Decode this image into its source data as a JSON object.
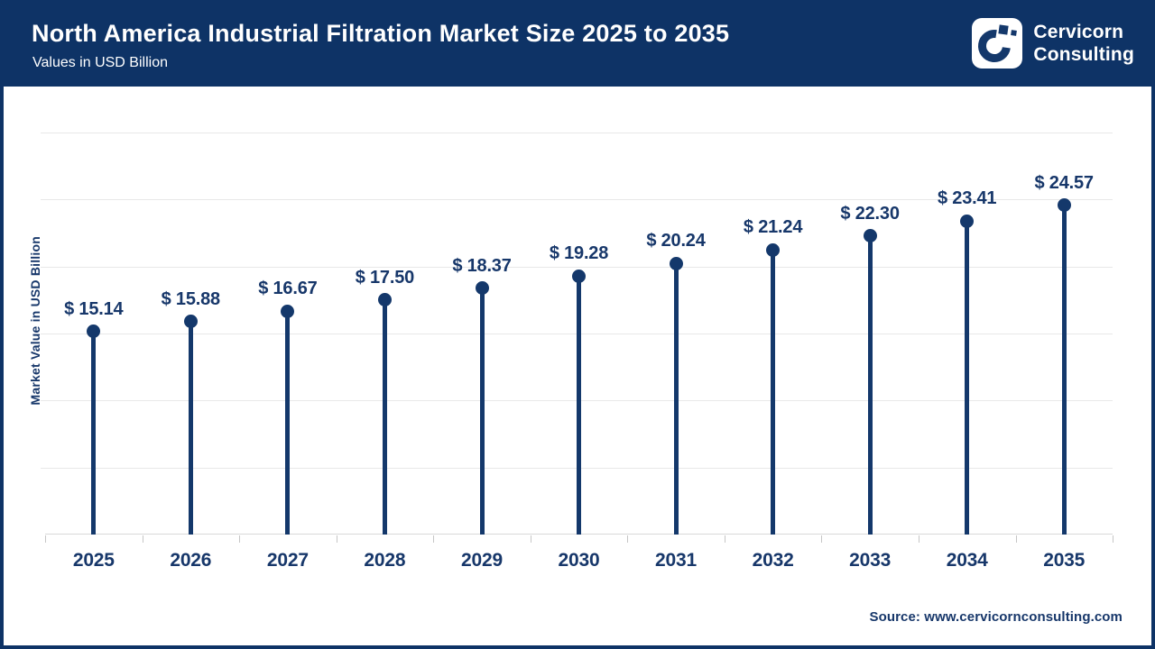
{
  "header": {
    "title": "North America Industrial Filtration Market Size 2025 to 2035",
    "subtitle": "Values in USD Billion",
    "brand": {
      "line1": "Cervicorn",
      "line2": "Consulting"
    }
  },
  "chart_data": {
    "type": "bar",
    "style": "lollipop",
    "title": "North America Industrial Filtration Market Size 2025 to 2035",
    "subtitle": "Values in USD Billion",
    "categories": [
      "2025",
      "2026",
      "2027",
      "2028",
      "2029",
      "2030",
      "2031",
      "2032",
      "2033",
      "2034",
      "2035"
    ],
    "values": [
      15.14,
      15.88,
      16.67,
      17.5,
      18.37,
      19.28,
      20.24,
      21.24,
      22.3,
      23.41,
      24.57
    ],
    "data_labels": [
      "$ 15.14",
      "$ 15.88",
      "$ 16.67",
      "$ 17.50",
      "$ 18.37",
      "$ 19.28",
      "$ 20.24",
      "$ 21.24",
      "$ 22.30",
      "$ 23.41",
      "$ 24.57"
    ],
    "xlabel": "",
    "ylabel": "Market Value in USD Billion",
    "ylim": [
      0,
      30
    ],
    "grid_step": 5,
    "grid": true,
    "legend_position": "none"
  },
  "footer": {
    "source": "Source: www.cervicornconsulting.com"
  },
  "colors": {
    "navy_header": "#0e3366",
    "navy_data": "#14386b",
    "navy_text": "#17376a",
    "grid": "#e8e8e8",
    "axis": "#d8d8d8",
    "tick": "#c6c6c6",
    "logo_bg": "#ffffff"
  }
}
